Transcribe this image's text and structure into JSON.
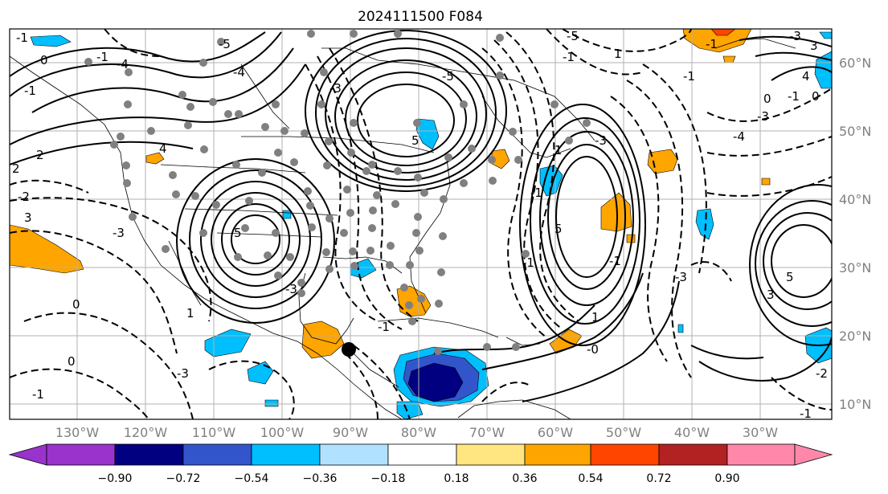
{
  "title": "2024111500 F084",
  "longitude_labels": [
    "130°W",
    "120°W",
    "110°W",
    "100°W",
    "90°W",
    "80°W",
    "70°W",
    "60°W",
    "50°W",
    "40°W",
    "30°W"
  ],
  "latitude_labels": [
    "60°N",
    "50°N",
    "40°N",
    "30°N",
    "20°N",
    "10°N"
  ],
  "colorbar": {
    "tick_labels": [
      "−0.90",
      "−0.72",
      "−0.54",
      "−0.36",
      "−0.18",
      "0.18",
      "0.36",
      "0.54",
      "0.72",
      "0.90"
    ],
    "colors": [
      "#9933cc",
      "#000080",
      "#3355cc",
      "#00bfff",
      "#b0e2ff",
      "#ffffff",
      "#ffe680",
      "#ffa500",
      "#ff4500",
      "#b22222",
      "#ff88aa"
    ]
  },
  "fill_colors": {
    "orange": "#ffa500",
    "cyan": "#00bfff",
    "blue": "#3355cc",
    "navy": "#000080",
    "light_blue": "#b0e2ff",
    "red": "#ff4500"
  },
  "contour_labels": [
    "0",
    "-1",
    "-1",
    "-1",
    "2",
    "2",
    "-4",
    "-4",
    "-5",
    "-2",
    "3",
    "-3",
    "4",
    "0",
    "-1",
    "5",
    "-3",
    "1",
    "-3",
    "-3",
    "-1",
    "-0",
    "-1",
    "1",
    "-3",
    "-4",
    "-3",
    "-1",
    "-1",
    "0",
    "-1",
    "0",
    "4",
    "3",
    "-3",
    "-1",
    "1",
    "5",
    "5",
    "-5",
    "-5",
    "-3",
    "3",
    "5",
    "0",
    "-1",
    "-1",
    "-2",
    "-1",
    "1"
  ]
}
